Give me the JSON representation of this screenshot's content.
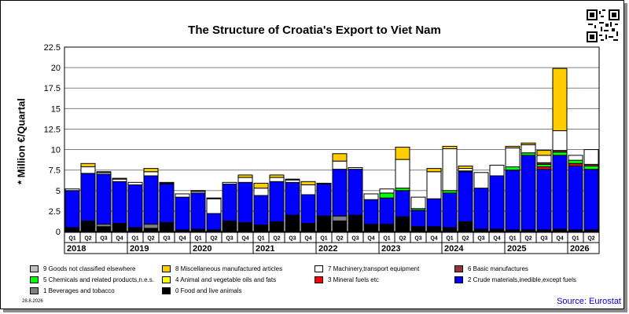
{
  "title": "The Structure of Croatia's Export to Viet Nam",
  "footer_date": "28.8.2026",
  "source": "Source: Eurostat",
  "chart_data": {
    "type": "bar",
    "stacked": true,
    "title": "The Structure of Croatia's Export to Viet Nam",
    "ylabel": "* Million €/Quartal",
    "ylim": [
      0,
      22.5
    ],
    "yticks": [
      "0",
      "2.5",
      "5",
      "7.5",
      "10",
      "12.5",
      "15",
      "17.5",
      "20",
      "22.5"
    ],
    "grid": true,
    "legend_position": "bottom",
    "categories": [
      "Q1",
      "Q2",
      "Q3",
      "Q4",
      "Q1",
      "Q2",
      "Q3",
      "Q4",
      "Q1",
      "Q2",
      "Q3",
      "Q4",
      "Q1",
      "Q2",
      "Q3",
      "Q4",
      "Q1",
      "Q2",
      "Q3",
      "Q4",
      "Q1",
      "Q2",
      "Q3",
      "Q4",
      "Q1",
      "Q2",
      "Q3",
      "Q4",
      "Q1",
      "Q2",
      "Q3",
      "Q4",
      "Q1",
      "Q2"
    ],
    "years": [
      "2018",
      "2019",
      "2020",
      "2021",
      "2022",
      "2023",
      "2024",
      "2025",
      "2026"
    ],
    "series": [
      {
        "name": "0 Food and live animals",
        "color": "#000000",
        "values": [
          0.5,
          1.3,
          0.6,
          0.9,
          0.5,
          0.4,
          1.1,
          0.2,
          0.3,
          0.2,
          1.2,
          1.1,
          0.8,
          1.2,
          2.0,
          1.0,
          1.9,
          1.3,
          2.0,
          0.9,
          0.9,
          1.8,
          0.6,
          0.6,
          0.5,
          1.2,
          0.3,
          0.3,
          0.2,
          0.2,
          0.2,
          0.3,
          0.2,
          0.2
        ]
      },
      {
        "name": "1 Beverages and tobacco",
        "color": "#808080",
        "values": [
          0,
          0,
          0.3,
          0.1,
          0,
          0.5,
          0,
          0,
          0,
          0,
          0.1,
          0,
          0,
          0,
          0,
          0,
          0,
          0.6,
          0,
          0,
          0,
          0,
          0,
          0,
          0,
          0,
          0,
          0,
          0,
          0,
          0,
          0,
          0,
          0
        ]
      },
      {
        "name": "2 Crude materials,inedible,except fuels",
        "color": "#0000ff",
        "values": [
          4.5,
          5.8,
          6.1,
          5.1,
          5.2,
          5.9,
          4.7,
          4.0,
          4.4,
          2.0,
          4.5,
          4.9,
          3.6,
          4.9,
          4.0,
          3.5,
          3.9,
          5.7,
          5.6,
          3.0,
          3.2,
          3.2,
          2.0,
          3.4,
          4.2,
          6.1,
          5.0,
          6.5,
          7.3,
          9.1,
          7.4,
          9.0,
          7.8,
          7.4
        ]
      },
      {
        "name": "3 Mineral fuels etc",
        "color": "#ff0000",
        "values": [
          0,
          0,
          0,
          0,
          0,
          0,
          0,
          0,
          0,
          0,
          0,
          0,
          0,
          0,
          0,
          0,
          0,
          0,
          0,
          0,
          0,
          0,
          0,
          0,
          0,
          0,
          0,
          0,
          0,
          0,
          0.3,
          0,
          0.3,
          0
        ]
      },
      {
        "name": "4 Animal and vegetable oils and fats",
        "color": "#ffff00",
        "values": [
          0,
          0,
          0,
          0,
          0,
          0,
          0,
          0,
          0,
          0,
          0,
          0,
          0,
          0,
          0,
          0,
          0,
          0,
          0,
          0,
          0,
          0,
          0,
          0,
          0,
          0,
          0,
          0,
          0,
          0,
          0,
          0,
          0,
          0
        ]
      },
      {
        "name": "5 Chemicals and related products,n.e.s.",
        "color": "#00ff00",
        "values": [
          0,
          0,
          0,
          0,
          0,
          0,
          0,
          0,
          0,
          0,
          0,
          0,
          0,
          0,
          0,
          0,
          0,
          0,
          0,
          0,
          0.6,
          0.3,
          0.2,
          0,
          0.3,
          0.1,
          0,
          0,
          0.4,
          0.3,
          0.3,
          0.4,
          0.4,
          0.4
        ]
      },
      {
        "name": "6 Basic manufactures",
        "color": "#993333",
        "values": [
          0,
          0,
          0,
          0,
          0,
          0,
          0.1,
          0,
          0,
          0,
          0,
          0,
          0,
          0,
          0,
          0,
          0,
          0,
          0,
          0,
          0,
          0,
          0,
          0,
          0,
          0,
          0,
          0,
          0,
          0,
          0.2,
          0.2,
          0,
          0.2
        ]
      },
      {
        "name": "7 Machinery,transport equipment",
        "color": "#ffffff",
        "values": [
          0.2,
          0.8,
          0.2,
          0.3,
          0.3,
          0.5,
          0.1,
          0.4,
          0.2,
          1.8,
          0.2,
          0.6,
          0.9,
          0.5,
          0.3,
          1.2,
          0.1,
          1.0,
          0.2,
          0.7,
          0.5,
          3.5,
          1.4,
          3.3,
          5.1,
          0.3,
          1.9,
          1.3,
          2.3,
          1.0,
          0.9,
          2.4,
          0.6,
          1.8
        ]
      },
      {
        "name": "8 Miscellaneous manufactured articles",
        "color": "#ffcc00",
        "values": [
          0,
          0.4,
          0.1,
          0.1,
          0,
          0.4,
          0,
          0,
          0.1,
          0.1,
          0,
          0.3,
          0.6,
          0.3,
          0.1,
          0.4,
          0,
          0.9,
          0,
          0,
          0,
          1.5,
          0,
          0.4,
          0.3,
          0.3,
          0,
          0,
          0.2,
          0.2,
          0.6,
          7.6,
          0,
          0
        ]
      },
      {
        "name": "9 Goods not classified elsewhere",
        "color": "#c0c0c0",
        "values": [
          0,
          0,
          0,
          0,
          0,
          0,
          0,
          0,
          0,
          0,
          0,
          0,
          0,
          0,
          0,
          0,
          0,
          0,
          0,
          0,
          0,
          0,
          0,
          0,
          0,
          0,
          0,
          0,
          0,
          0,
          0,
          0,
          0,
          0
        ]
      }
    ]
  },
  "legend_rows": [
    [
      "9 Goods not classified elsewhere",
      "8 Miscellaneous manufactured articles",
      "7 Machinery,transport equipment",
      "6 Basic manufactures"
    ],
    [
      "5 Chemicals and related products,n.e.s.",
      "4 Animal and vegetable oils and fats",
      "3 Mineral fuels etc",
      "2 Crude materials,inedible,except fuels"
    ],
    [
      "1 Beverages and tobacco",
      "0 Food and live animals"
    ]
  ]
}
